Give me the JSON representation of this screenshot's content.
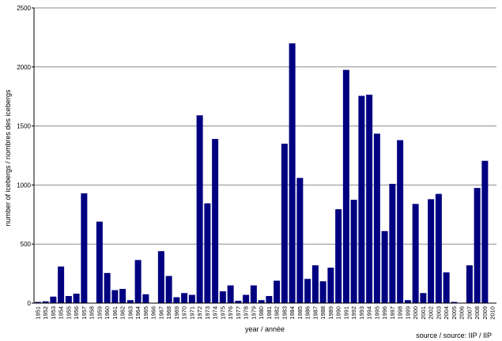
{
  "chart_data": {
    "type": "bar",
    "title": "",
    "xlabel": "year / année",
    "ylabel": "number of icebergs / nombres des icebergs",
    "ylim": [
      0,
      2500
    ],
    "yticks": [
      0,
      500,
      1000,
      1500,
      2000,
      2500
    ],
    "grid": true,
    "bar_color": "#000080",
    "source": "source / source: IIP / IIP",
    "categories": [
      "1951",
      "1952",
      "1953",
      "1954",
      "1955",
      "1956",
      "1957",
      "1958",
      "1959",
      "1960",
      "1961",
      "1962",
      "1963",
      "1964",
      "1965",
      "1966",
      "1967",
      "1968",
      "1969",
      "1970",
      "1971",
      "1972",
      "1973",
      "1974",
      "1975",
      "1976",
      "1977",
      "1978",
      "1979",
      "1980",
      "1981",
      "1982",
      "1983",
      "1984",
      "1985",
      "1986",
      "1987",
      "1988",
      "1989",
      "1990",
      "1991",
      "1992",
      "1993",
      "1994",
      "1995",
      "1996",
      "1997",
      "1998",
      "1999",
      "2000",
      "2001",
      "2002",
      "2003",
      "2004",
      "2005",
      "2006",
      "2007",
      "2008",
      "2009",
      "2010"
    ],
    "values": [
      10,
      15,
      55,
      310,
      60,
      80,
      930,
      0,
      690,
      255,
      110,
      120,
      25,
      365,
      75,
      0,
      440,
      230,
      50,
      85,
      70,
      1590,
      845,
      1390,
      100,
      150,
      20,
      70,
      150,
      25,
      60,
      190,
      1350,
      2200,
      1060,
      205,
      320,
      185,
      300,
      795,
      1975,
      875,
      1755,
      1765,
      1435,
      610,
      1010,
      1380,
      25,
      840,
      85,
      880,
      925,
      260,
      10,
      0,
      320,
      975,
      1205,
      0
    ]
  }
}
